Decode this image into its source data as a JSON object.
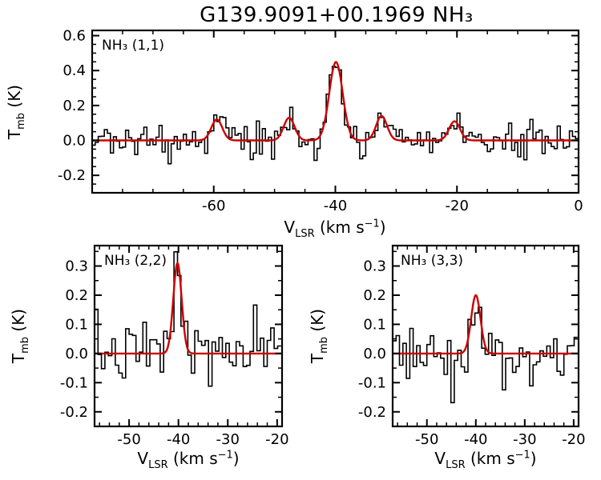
{
  "chart_data": {
    "type": "line",
    "title": "G139.9091+00.1969 NH₃",
    "xlabel": "V_LSR (km s^-1)",
    "ylabel": "T_mb (K)",
    "legend": "none",
    "grid": false,
    "colors": {
      "data": "#000000",
      "fit": "#cc0000"
    },
    "panels": [
      {
        "id": "nh3-11",
        "label": "NH₃ (1,1)",
        "xlim": [
          -80,
          0
        ],
        "ylim": [
          -0.3,
          0.63
        ],
        "xticks": [
          -60,
          -40,
          -20,
          0
        ],
        "xtick_labels": [
          "-60",
          "-40",
          "-20",
          "0"
        ],
        "yticks": [
          -0.2,
          0.0,
          0.2,
          0.4,
          0.6
        ],
        "ytick_labels": [
          "-0.2",
          "0.0",
          "0.2",
          "0.4",
          "0.6"
        ],
        "x_minor": 5,
        "y_minor": 0.05,
        "gaussians": [
          {
            "center": -59.5,
            "amp": 0.12,
            "sigma": 0.9
          },
          {
            "center": -47.6,
            "amp": 0.13,
            "sigma": 0.9
          },
          {
            "center": -39.9,
            "amp": 0.45,
            "sigma": 1.1
          },
          {
            "center": -32.4,
            "amp": 0.14,
            "sigma": 0.9
          },
          {
            "center": -20.4,
            "amp": 0.11,
            "sigma": 0.9
          }
        ],
        "noise_rms": 0.048,
        "channel_width": 0.5,
        "seed": 20
      },
      {
        "id": "nh3-22",
        "label": "NH₃ (2,2)",
        "xlim": [
          -57,
          -19
        ],
        "ylim": [
          -0.25,
          0.37
        ],
        "xticks": [
          -50,
          -40,
          -30,
          -20
        ],
        "xtick_labels": [
          "-50",
          "-40",
          "-30",
          "-20"
        ],
        "yticks": [
          -0.2,
          -0.1,
          0.0,
          0.1,
          0.2,
          0.3
        ],
        "ytick_labels": [
          "-0.2",
          "-0.1",
          "0.0",
          "0.1",
          "0.2",
          "0.3"
        ],
        "x_minor": 2,
        "y_minor": 0.05,
        "gaussians": [
          {
            "center": -40.2,
            "amp": 0.31,
            "sigma": 0.85
          }
        ],
        "noise_rms": 0.055,
        "channel_width": 0.7,
        "seed": 7
      },
      {
        "id": "nh3-33",
        "label": "NH₃ (3,3)",
        "xlim": [
          -57,
          -19
        ],
        "ylim": [
          -0.25,
          0.37
        ],
        "xticks": [
          -50,
          -40,
          -30,
          -20
        ],
        "xtick_labels": [
          "-50",
          "-40",
          "-30",
          "-20"
        ],
        "yticks": [
          -0.2,
          -0.1,
          0.0,
          0.1,
          0.2,
          0.3
        ],
        "ytick_labels": [
          "-0.2",
          "-0.1",
          "0.0",
          "0.1",
          "0.2",
          "0.3"
        ],
        "x_minor": 2,
        "y_minor": 0.05,
        "gaussians": [
          {
            "center": -40.0,
            "amp": 0.2,
            "sigma": 0.95
          }
        ],
        "noise_rms": 0.055,
        "channel_width": 0.7,
        "seed": 3
      }
    ]
  },
  "axis_labels": {
    "y": {
      "pre": "T",
      "sub": "mb",
      "post": " (K)"
    },
    "x": {
      "pre": "V",
      "sub": "LSR",
      "mid": " (km s",
      "sup": "−1",
      "post": ")"
    }
  }
}
